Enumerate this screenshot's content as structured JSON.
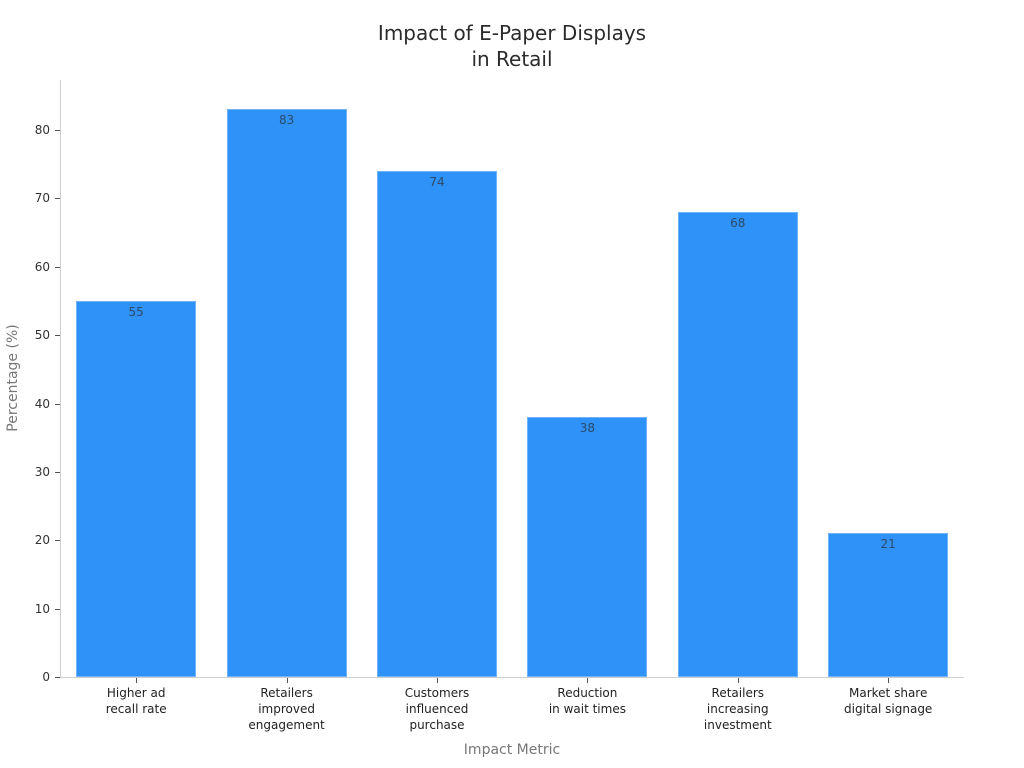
{
  "chart_data": {
    "type": "bar",
    "title": "Impact of E-Paper Displays\nin Retail",
    "title_lines": [
      "Impact of E-Paper Displays",
      "in Retail"
    ],
    "xlabel": "Impact Metric",
    "ylabel": "Percentage (%)",
    "categories": [
      "Higher ad\nrecall rate",
      "Retailers\nimproved\nengagement",
      "Customers\ninfluenced\npurchase",
      "Reduction\nin wait times",
      "Retailers\nincreasing\ninvestment",
      "Market share\ndigital signage"
    ],
    "values": [
      55,
      83,
      74,
      38,
      68,
      21
    ],
    "data_labels": [
      "55",
      "83",
      "74",
      "38",
      "68",
      "21"
    ],
    "yticks": [
      0,
      10,
      20,
      30,
      40,
      50,
      60,
      70,
      80
    ],
    "ytick_labels": [
      "0",
      "10",
      "20",
      "30",
      "40",
      "50",
      "60",
      "70",
      "80"
    ],
    "ylim": [
      0,
      87.3
    ],
    "grid": false,
    "legend": null,
    "bar_color": "#2f92f8"
  }
}
